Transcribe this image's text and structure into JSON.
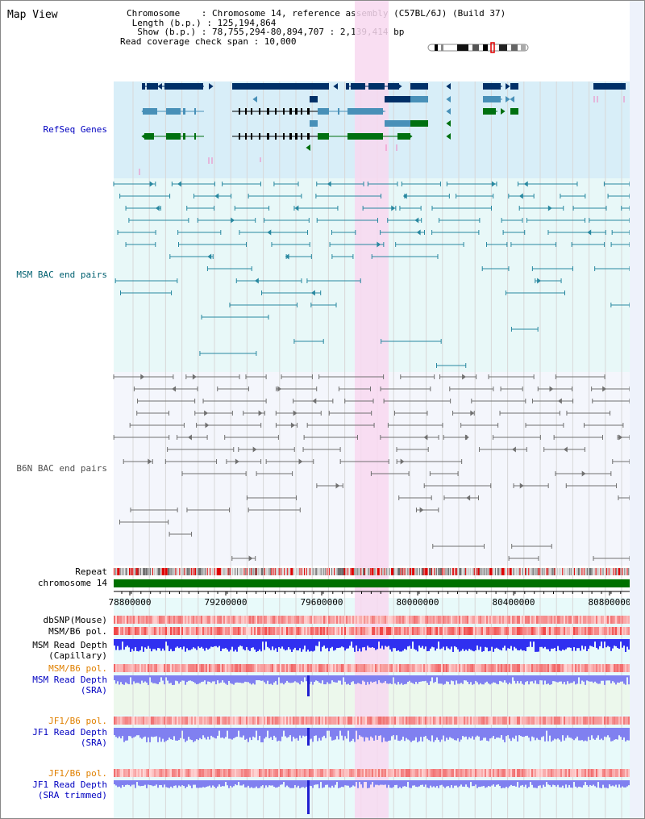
{
  "page": {
    "title": "Map View"
  },
  "header": {
    "chromosome_line": "Chromosome    : Chromosome 14, reference assembly (C57BL/6J) (Build 37)",
    "length_line": " Length (b.p.) : 125,194,864",
    "show_line": "  Show (b.p.) : 78,755,294-80,894,707 : 2,139,414 bp",
    "coverage_line": "Read coverage check span : 10,000"
  },
  "colors": {
    "refseq_bg": "#d8eef8",
    "msm_bac_bg": "#e8f8f8",
    "b6n_bac_bg": "#f4f6fc",
    "highlight": "#f8d8f0",
    "gene_dark": "#003068",
    "gene_mid": "#4890b8",
    "gene_green": "#007010",
    "msm_pair": "#2888a0",
    "b6n_pair": "#707070",
    "chrom_bar": "#007000",
    "read_depth": "#3030f0",
    "read_depth_sra": "#8080f0"
  },
  "tracks": {
    "refseq": {
      "label": "RefSeq Genes"
    },
    "msm_bac": {
      "label": "MSM BAC end pairs"
    },
    "b6n_bac": {
      "label": "B6N BAC end pairs"
    },
    "repeat": {
      "label": "Repeat"
    },
    "chromosome": {
      "label": "chromosome 14"
    },
    "dbsnp": {
      "label": "dbSNP(Mouse)"
    },
    "msm_b6_pol": {
      "label": "MSM/B6 pol."
    },
    "msm_depth_cap": {
      "label1": "MSM Read Depth",
      "label2": "(Capillary)"
    },
    "msm_b6_pol2": {
      "label": "MSM/B6 pol."
    },
    "msm_depth_sra": {
      "label1": "MSM Read Depth",
      "label2": "(SRA)"
    },
    "jf1_b6_pol": {
      "label": "JF1/B6 pol."
    },
    "jf1_depth_sra": {
      "label1": "JF1 Read Depth",
      "label2": "(SRA)"
    },
    "jf1_b6_pol2": {
      "label": "JF1/B6 pol."
    },
    "jf1_depth_trim": {
      "label1": "JF1 Read Depth",
      "label2": "(SRA trimmed)"
    }
  },
  "axis": {
    "ticks": [
      "78800000",
      "79200000",
      "79600000",
      "80000000",
      "80400000",
      "80800000"
    ]
  }
}
